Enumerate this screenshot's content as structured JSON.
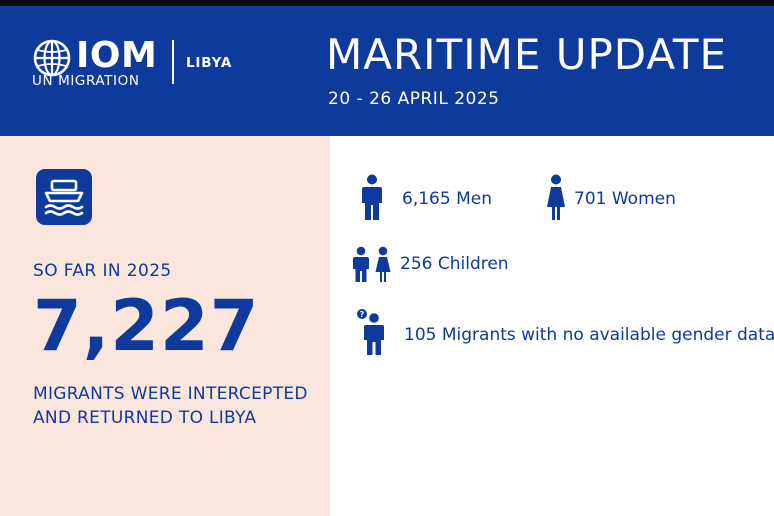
{
  "header": {
    "logo_main": "IOM",
    "logo_sub": "UN MIGRATION",
    "country": "LIBYA",
    "title": "MARITIME UPDATE",
    "date_range": "20 - 26 APRIL 2025"
  },
  "summary": {
    "period_label": "SO FAR IN 2025",
    "total": "7,227",
    "description": "MIGRANTS WERE INTERCEPTED AND RETURNED TO LIBYA",
    "icon": "boat-icon"
  },
  "breakdown": {
    "men": {
      "label": "6,165 Men",
      "icon": "man-icon"
    },
    "women": {
      "label": "701 Women",
      "icon": "woman-icon"
    },
    "children": {
      "label": "256 Children",
      "icon": "children-icon"
    },
    "unknown": {
      "label": "105 Migrants with no available gender data",
      "icon": "person-question-icon"
    }
  },
  "colors": {
    "brand_blue": "#0e3a9b",
    "panel_pink": "#fbe6de",
    "panel_white": "#ffffff"
  }
}
